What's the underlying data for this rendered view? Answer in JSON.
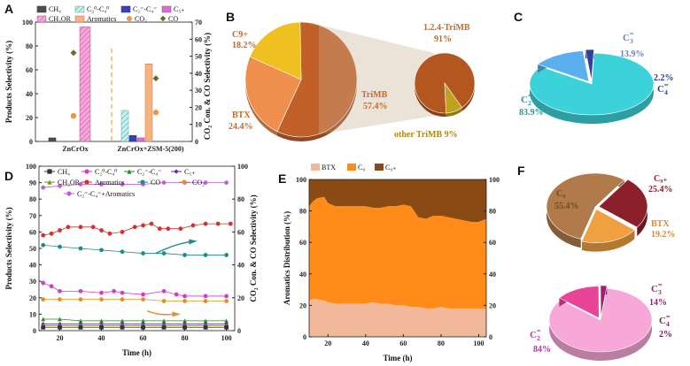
{
  "panels": {
    "A": {
      "label": "A",
      "chart_data": {
        "type": "bar",
        "categories": [
          "ZnCrOx",
          "ZnCrOx+ZSM-5(200)"
        ],
        "series": [
          {
            "name": "CH₄",
            "values": [
              3,
              0
            ],
            "color": "#4d4d4d"
          },
          {
            "name": "C₂⁰-C₄⁰",
            "values": [
              0,
              26
            ],
            "color": "#9fe5e0"
          },
          {
            "name": "C₂⁼-C₄⁼",
            "values": [
              0,
              5
            ],
            "color": "#3344bb"
          },
          {
            "name": "C₅₊",
            "values": [
              0,
              3
            ],
            "color": "#d76dd6"
          },
          {
            "name": "CH₃OR",
            "values": [
              96,
              0
            ],
            "color": "#f27bc9"
          },
          {
            "name": "Aromatics",
            "values": [
              0,
              65
            ],
            "color": "#f7b27e"
          }
        ],
        "scatter": [
          {
            "name": "CO₂",
            "values": [
              15,
              17
            ],
            "color": "#f0944a"
          },
          {
            "name": "CO",
            "values": [
              52,
              37
            ],
            "color": "#6b6b2b"
          }
        ],
        "ylabel": "Products Selectivity (%)",
        "y2label": "CO₂ Con. & CO Selectivity (%)",
        "ylim": [
          0,
          100
        ],
        "y2lim": [
          0,
          70
        ],
        "yticks": [
          "0",
          "20",
          "40",
          "60",
          "80",
          "100"
        ],
        "y2ticks": [
          "0",
          "10",
          "20",
          "30",
          "40",
          "50",
          "60",
          "70"
        ]
      }
    },
    "B": {
      "label": "B",
      "chart_data": [
        {
          "type": "pie",
          "slices": [
            {
              "name": "TriMB",
              "value": 57.4,
              "label": "TriMB",
              "pct": "57.4%",
              "color": "#c2602a"
            },
            {
              "name": "BTX",
              "value": 24.4,
              "label": "BTX",
              "pct": "24.4%",
              "color": "#ee8f4d"
            },
            {
              "name": "C9+",
              "value": 18.2,
              "label": "C9+",
              "pct": "18.2%",
              "color": "#f0c020"
            }
          ]
        },
        {
          "type": "pie",
          "slices": [
            {
              "name": "1.2.4-TriMB",
              "value": 91,
              "label": "1.2.4-TriMB",
              "pct": "91%",
              "color": "#b3561f"
            },
            {
              "name": "other TriMB",
              "value": 9,
              "label": "other TriMB 9%",
              "color": "#bfa21a"
            }
          ]
        }
      ]
    },
    "C": {
      "label": "C",
      "chart_data": {
        "type": "pie",
        "slices": [
          {
            "name": "C2=",
            "value": 83.9,
            "sym": "C",
            "sub": "2",
            "sup": "=",
            "pct": "83.9%",
            "color": "#3cd2da",
            "tcolor": "#1f9a9a"
          },
          {
            "name": "C3=",
            "value": 13.9,
            "sym": "C",
            "sub": "3",
            "sup": "=",
            "pct": "13.9%",
            "color": "#5ab0ef",
            "tcolor": "#6a7ccc"
          },
          {
            "name": "C4=",
            "value": 2.2,
            "sym": "C",
            "sub": "4",
            "sup": "=",
            "pct": "2.2%",
            "color": "#2f3fa0",
            "tcolor": "#2b3a90"
          }
        ]
      }
    },
    "D": {
      "label": "D",
      "chart_data": {
        "type": "line",
        "xlabel": "Time (h)",
        "ylabel": "Products Selectivity (%)",
        "y2label": "CO₂ Con. & CO Selectivity (%)",
        "xlim": [
          10,
          104
        ],
        "ylim": [
          0,
          100
        ],
        "y2lim": [
          0,
          100
        ],
        "xticks": [
          "20",
          "40",
          "60",
          "80",
          "100"
        ],
        "yticks": [
          "0",
          "10",
          "20",
          "30",
          "40",
          "50",
          "60",
          "70",
          "80",
          "90",
          "100"
        ],
        "y2ticks": [
          "0",
          "20",
          "40",
          "60",
          "80",
          "100"
        ],
        "legend": [
          {
            "text": "CH₄",
            "color": "#333",
            "marker": "square"
          },
          {
            "text": "C₂⁰-C₄⁰",
            "color": "#d23fc4",
            "marker": "circle"
          },
          {
            "text": "C₂⁼-C₄⁼",
            "color": "#2a8a2a",
            "marker": "triangle"
          },
          {
            "text": "C₅₊",
            "color": "#5b2fa8",
            "marker": "diamond"
          },
          {
            "text": "CH₃OR",
            "color": "#8a8a20",
            "marker": "triangle"
          },
          {
            "text": "Aromatics",
            "color": "#d3322e",
            "marker": "circle"
          },
          {
            "text": "CO",
            "color": "#1f8c8c",
            "marker": "circle"
          },
          {
            "text": "CO₂",
            "color": "#e0902a",
            "marker": "circle"
          },
          {
            "text": "C₂⁼-C₄⁼+Aromatics",
            "color": "#c060d8",
            "marker": "circle"
          }
        ],
        "series": [
          {
            "name": "C₂⁼-C₄⁼+Aromatics",
            "axis": "left",
            "color": "#c060d8",
            "marker": "circle",
            "x": [
              12,
              20,
              30,
              40,
              50,
              60,
              70,
              80,
              90,
              100
            ],
            "y": [
              87,
              88,
              89,
              89,
              89,
              89,
              90,
              90,
              90,
              90
            ]
          },
          {
            "name": "Aromatics",
            "axis": "left",
            "color": "#d3322e",
            "marker": "circle",
            "x": [
              12,
              16,
              20,
              24,
              30,
              36,
              40,
              44,
              50,
              56,
              60,
              64,
              68,
              72,
              78,
              84,
              90,
              96,
              102
            ],
            "y": [
              58,
              59,
              61,
              63,
              63,
              63,
              61,
              59,
              60,
              63,
              64,
              65,
              62,
              62,
              62,
              64,
              65,
              65,
              65
            ]
          },
          {
            "name": "CO",
            "axis": "left",
            "color": "#1f8c8c",
            "marker": "circle",
            "x": [
              12,
              20,
              30,
              40,
              50,
              60,
              70,
              80,
              90,
              100
            ],
            "y": [
              52,
              51,
              50,
              49,
              48,
              47,
              47,
              46,
              46,
              46
            ]
          },
          {
            "name": "C₂⁰-C₄⁰",
            "axis": "left",
            "color": "#d23fc4",
            "marker": "circle",
            "x": [
              12,
              16,
              20,
              30,
              40,
              46,
              50,
              60,
              70,
              76,
              80,
              90,
              100
            ],
            "y": [
              29,
              27,
              24,
              24,
              23,
              24,
              23,
              22,
              24,
              22,
              21,
              21,
              21
            ]
          },
          {
            "name": "CO₂",
            "axis": "left",
            "color": "#e0902a",
            "marker": "circle",
            "x": [
              12,
              20,
              30,
              40,
              50,
              60,
              70,
              80,
              90,
              100
            ],
            "y": [
              19,
              19,
              19,
              19,
              19,
              19,
              18,
              18,
              18,
              18
            ]
          },
          {
            "name": "C₂⁼-C₄⁼",
            "axis": "left",
            "color": "#2a8a2a",
            "marker": "triangle",
            "x": [
              12,
              20,
              30,
              40,
              50,
              60,
              70,
              80,
              90,
              100
            ],
            "y": [
              7,
              7,
              6,
              6,
              6,
              6,
              6,
              6,
              6,
              6
            ]
          },
          {
            "name": "C₅₊",
            "axis": "left",
            "color": "#5b2fa8",
            "marker": "diamond",
            "x": [
              12,
              20,
              30,
              40,
              50,
              60,
              70,
              80,
              90,
              100
            ],
            "y": [
              4,
              4,
              4,
              4,
              4,
              4,
              4,
              4,
              4,
              4
            ]
          },
          {
            "name": "CH₃OR",
            "axis": "left",
            "color": "#8a8a20",
            "marker": "triangle",
            "x": [
              12,
              20,
              30,
              40,
              50,
              60,
              70,
              80,
              90,
              100
            ],
            "y": [
              3,
              3,
              3,
              3,
              3,
              3,
              3,
              3,
              3,
              3
            ]
          },
          {
            "name": "CH₄",
            "axis": "left",
            "color": "#333",
            "marker": "square",
            "x": [
              12,
              20,
              30,
              40,
              50,
              60,
              70,
              80,
              90,
              100
            ],
            "y": [
              2,
              2,
              2,
              2,
              2,
              2,
              2,
              2,
              2,
              2
            ]
          }
        ]
      }
    },
    "E": {
      "label": "E",
      "chart_data": {
        "type": "area",
        "xlabel": "Time (h)",
        "ylabel": "Aromatics Distribution (%)",
        "xlim": [
          10,
          104
        ],
        "ylim": [
          0,
          100
        ],
        "xticks": [
          "20",
          "40",
          "60",
          "80",
          "100"
        ],
        "yticks": [
          "0",
          "20",
          "40",
          "60",
          "80",
          "100"
        ],
        "y2ticks": [
          "0",
          "20",
          "40",
          "60",
          "80",
          "100"
        ],
        "x": [
          10,
          12,
          14,
          18,
          20,
          24,
          30,
          36,
          40,
          44,
          48,
          52,
          56,
          60,
          64,
          68,
          72,
          76,
          80,
          84,
          88,
          92,
          96,
          100,
          104
        ],
        "series": [
          {
            "name": "BTX",
            "color": "#f1b999",
            "values": [
              23,
              24,
              24,
              23,
              22,
              21,
              21,
              21,
              21,
              22,
              21,
              21,
              20,
              20,
              19,
              19,
              18,
              18,
              19,
              18,
              18,
              18,
              18,
              18,
              18
            ]
          },
          {
            "name": "C₉",
            "color": "#ff8c19",
            "values": [
              60,
              62,
              64,
              66,
              63,
              62,
              62,
              62,
              62,
              60,
              61,
              62,
              63,
              64,
              64,
              57,
              57,
              59,
              58,
              58,
              57,
              56,
              55,
              55,
              57
            ]
          },
          {
            "name": "C₉₊",
            "color": "#8a4a13",
            "values": [
              17,
              14,
              12,
              11,
              15,
              17,
              17,
              17,
              17,
              18,
              18,
              17,
              17,
              16,
              17,
              24,
              25,
              23,
              23,
              24,
              25,
              26,
              27,
              27,
              25
            ]
          }
        ]
      }
    },
    "F": {
      "label": "F",
      "chart_data": [
        {
          "type": "pie",
          "slices": [
            {
              "name": "C9",
              "value": 55.4,
              "label": "C₉",
              "pct": "55.4%",
              "color": "#b07a4a",
              "tcolor": "#6b4e1f"
            },
            {
              "name": "C9+",
              "value": 25.4,
              "label": "C₉₊",
              "pct": "25.4%",
              "color": "#8b1f2a",
              "tcolor": "#8b1f2a"
            },
            {
              "name": "BTX",
              "value": 19.2,
              "label": "BTX",
              "pct": "19.2%",
              "color": "#f0a040",
              "tcolor": "#e08b2a"
            }
          ]
        },
        {
          "type": "pie",
          "slices": [
            {
              "name": "C2=",
              "value": 84,
              "sym": "C",
              "sub": "2",
              "sup": "=",
              "pct": "84%",
              "color": "#f7a8d8",
              "tcolor": "#c030b0"
            },
            {
              "name": "C3=",
              "value": 14,
              "sym": "C",
              "sub": "3",
              "sup": "=",
              "pct": "14%",
              "color": "#e8449a",
              "tcolor": "#a02070"
            },
            {
              "name": "C4=",
              "value": 2,
              "sym": "C",
              "sub": "4",
              "sup": "=",
              "pct": "2%",
              "color": "#a02070",
              "tcolor": "#7a1a55"
            }
          ]
        }
      ]
    }
  }
}
